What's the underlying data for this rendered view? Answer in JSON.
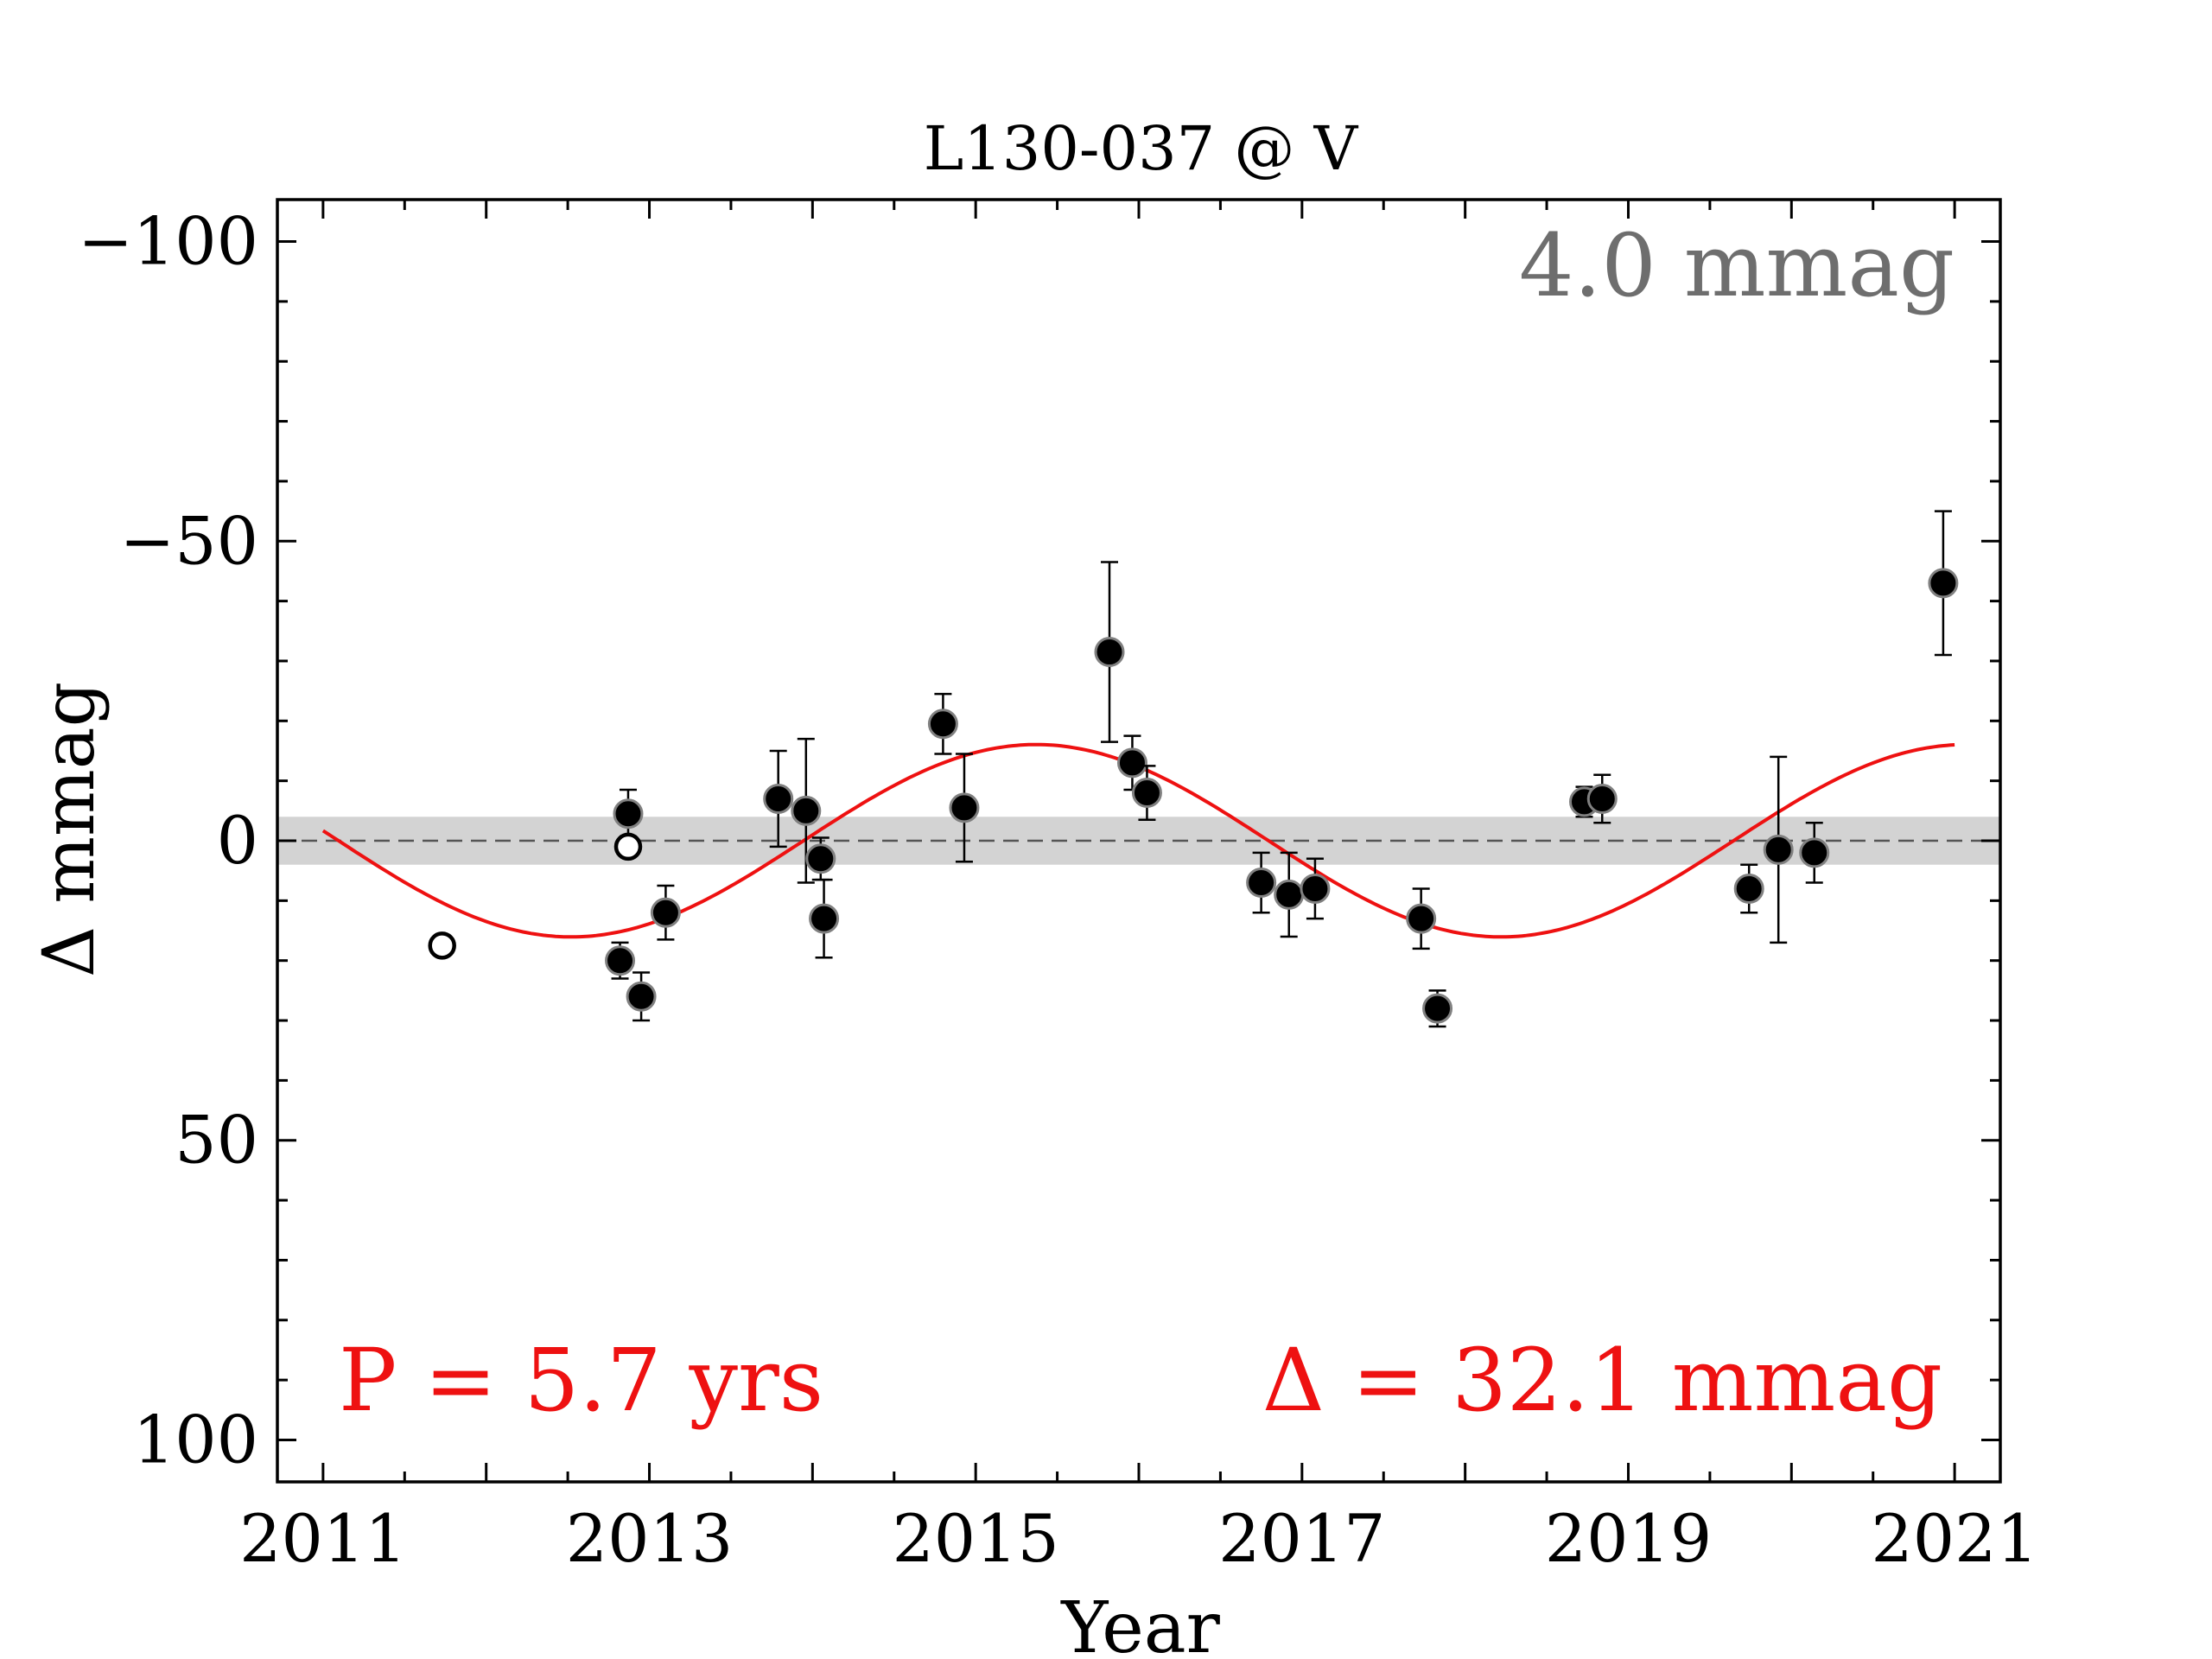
{
  "chart_data": {
    "type": "scatter",
    "title": "L130-037 @ V",
    "xlabel": "Year",
    "ylabel": "Δ  mmag",
    "xlim": [
      2010.72,
      2021.28
    ],
    "ylim": [
      107,
      -107
    ],
    "y_inverted": true,
    "xticks": [
      2011,
      2013,
      2015,
      2017,
      2019,
      2021
    ],
    "xtick_labels": [
      "2011",
      "2013",
      "2015",
      "2017",
      "2019",
      "2021"
    ],
    "yticks": [
      -100,
      -50,
      0,
      50,
      100
    ],
    "ytick_labels": [
      "−100",
      "−50",
      "0",
      "50",
      "100"
    ],
    "reference_line": 0,
    "noise_band": 4.0,
    "noise_label": "4.0 mmag",
    "period_label": "P = 5.7 yrs",
    "amplitude_label": "Δ = 32.1 mmag",
    "fit": {
      "period_years": 5.7,
      "amplitude_mmag": 32.1,
      "x_start": 2011.0,
      "x_end": 2021.0
    },
    "series": [
      {
        "marker": "filled",
        "points": [
          {
            "x": 2012.82,
            "y": 20,
            "err": 3
          },
          {
            "x": 2012.87,
            "y": -4.5,
            "err": 4
          },
          {
            "x": 2012.95,
            "y": 26,
            "err": 4
          },
          {
            "x": 2013.1,
            "y": 12,
            "err": 4.5
          },
          {
            "x": 2013.79,
            "y": -7,
            "err": 8
          },
          {
            "x": 2013.96,
            "y": -5,
            "err": 12
          },
          {
            "x": 2014.05,
            "y": 3,
            "err": 3.5
          },
          {
            "x": 2014.07,
            "y": 13,
            "err": 6.5
          },
          {
            "x": 2014.8,
            "y": -19.5,
            "err": 5
          },
          {
            "x": 2014.93,
            "y": -5.5,
            "err": 9
          },
          {
            "x": 2015.82,
            "y": -31.5,
            "err": 15
          },
          {
            "x": 2015.96,
            "y": -13,
            "err": 4.5
          },
          {
            "x": 2016.05,
            "y": -8,
            "err": 4.5
          },
          {
            "x": 2016.75,
            "y": 7,
            "err": 5
          },
          {
            "x": 2016.92,
            "y": 9,
            "err": 7
          },
          {
            "x": 2017.08,
            "y": 8,
            "err": 5
          },
          {
            "x": 2017.73,
            "y": 13,
            "err": 5
          },
          {
            "x": 2017.83,
            "y": 28,
            "err": 3
          },
          {
            "x": 2018.73,
            "y": -6.5,
            "err": 2.5
          },
          {
            "x": 2018.84,
            "y": -7,
            "err": 4
          },
          {
            "x": 2019.74,
            "y": 8,
            "err": 4
          },
          {
            "x": 2019.92,
            "y": 1.5,
            "err": 15.5
          },
          {
            "x": 2020.14,
            "y": 2,
            "err": 5
          },
          {
            "x": 2020.93,
            "y": -43,
            "err": 12
          }
        ]
      },
      {
        "marker": "open",
        "points": [
          {
            "x": 2011.73,
            "y": 17.5
          },
          {
            "x": 2012.87,
            "y": 1
          }
        ]
      }
    ],
    "colors": {
      "fit": "#ee1111",
      "band": "#d3d3d3",
      "noise_text": "#6e6e6e",
      "annotation": "#ee1111",
      "points": "#000000",
      "point_edge": "#808080"
    }
  }
}
